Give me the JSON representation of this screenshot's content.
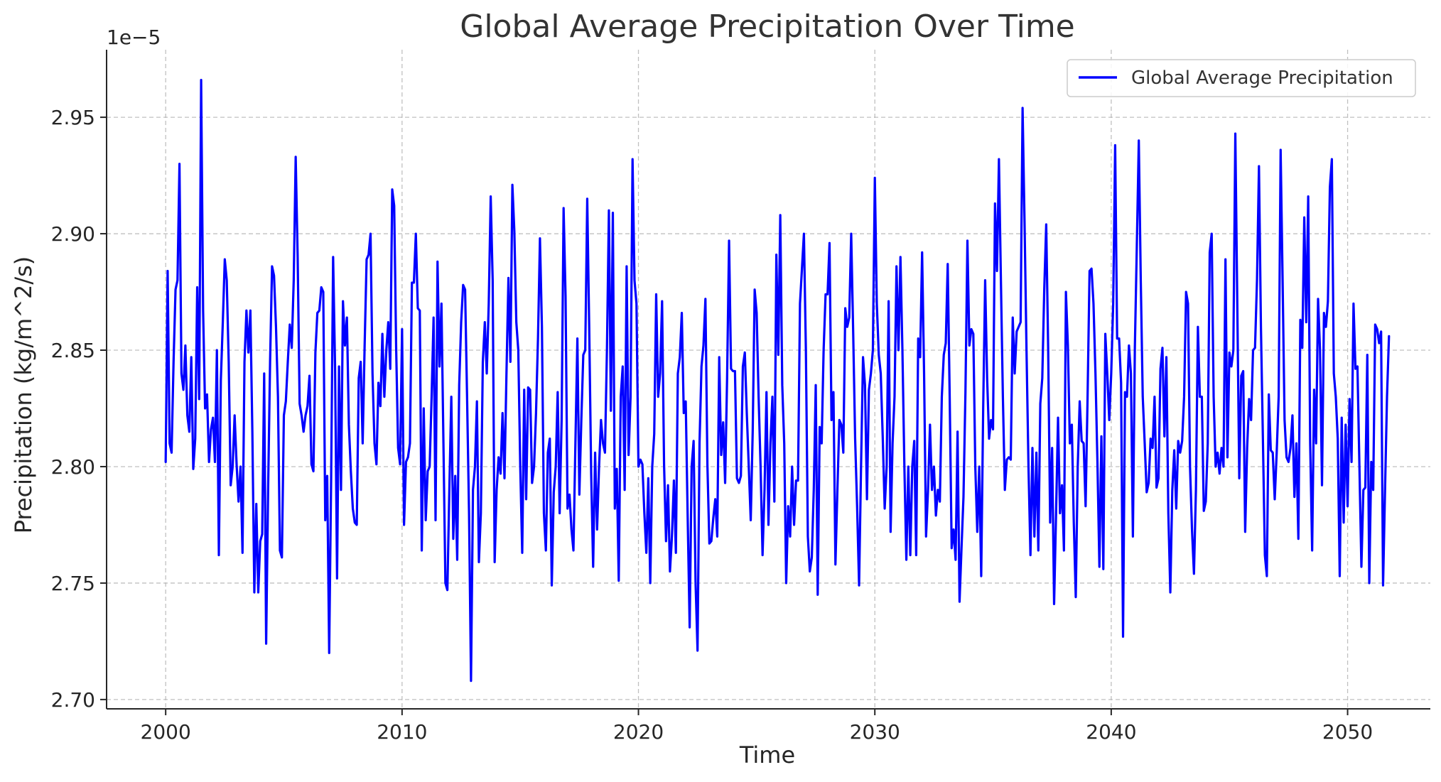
{
  "chart_data": {
    "type": "line",
    "title": "Global Average Precipitation Over Time",
    "xlabel": "Time",
    "ylabel": "Precipitation (kg/m^2/s)",
    "y_scale_note": "1e−5",
    "xlim": [
      1997.5,
      2053.5
    ],
    "ylim": [
      2.696,
      2.979
    ],
    "x_ticks": [
      2000,
      2010,
      2020,
      2030,
      2040,
      2050
    ],
    "y_ticks": [
      2.7,
      2.75,
      2.8,
      2.85,
      2.9,
      2.95
    ],
    "y_tick_labels": [
      "2.70",
      "2.75",
      "2.80",
      "2.85",
      "2.90",
      "2.95"
    ],
    "grid": true,
    "legend_position": "top-right",
    "line_color": "#0000ff",
    "series": [
      {
        "name": "Global Average Precipitation",
        "x_start": 2000.0,
        "x_step_months": 1,
        "values": [
          2.802,
          2.884,
          2.81,
          2.806,
          2.845,
          2.876,
          2.88,
          2.93,
          2.84,
          2.833,
          2.852,
          2.822,
          2.815,
          2.847,
          2.799,
          2.812,
          2.877,
          2.829,
          2.966,
          2.867,
          2.825,
          2.831,
          2.802,
          2.816,
          2.821,
          2.802,
          2.85,
          2.762,
          2.837,
          2.862,
          2.889,
          2.88,
          2.845,
          2.792,
          2.8,
          2.822,
          2.801,
          2.785,
          2.8,
          2.763,
          2.845,
          2.867,
          2.849,
          2.867,
          2.815,
          2.746,
          2.784,
          2.746,
          2.768,
          2.771,
          2.84,
          2.724,
          2.79,
          2.845,
          2.886,
          2.882,
          2.86,
          2.83,
          2.764,
          2.761,
          2.822,
          2.828,
          2.845,
          2.861,
          2.851,
          2.88,
          2.933,
          2.89,
          2.827,
          2.822,
          2.815,
          2.822,
          2.826,
          2.839,
          2.801,
          2.798,
          2.849,
          2.866,
          2.867,
          2.877,
          2.875,
          2.777,
          2.796,
          2.72,
          2.795,
          2.89,
          2.842,
          2.752,
          2.843,
          2.79,
          2.871,
          2.852,
          2.864,
          2.818,
          2.798,
          2.782,
          2.776,
          2.775,
          2.838,
          2.845,
          2.81,
          2.852,
          2.889,
          2.891,
          2.9,
          2.84,
          2.81,
          2.801,
          2.836,
          2.826,
          2.857,
          2.83,
          2.85,
          2.862,
          2.842,
          2.919,
          2.912,
          2.851,
          2.808,
          2.801,
          2.859,
          2.775,
          2.802,
          2.804,
          2.81,
          2.879,
          2.879,
          2.9,
          2.868,
          2.867,
          2.764,
          2.825,
          2.777,
          2.798,
          2.8,
          2.83,
          2.864,
          2.777,
          2.888,
          2.843,
          2.87,
          2.81,
          2.75,
          2.747,
          2.79,
          2.83,
          2.769,
          2.796,
          2.76,
          2.835,
          2.862,
          2.878,
          2.876,
          2.83,
          2.78,
          2.708,
          2.79,
          2.8,
          2.828,
          2.759,
          2.78,
          2.845,
          2.862,
          2.84,
          2.87,
          2.916,
          2.88,
          2.759,
          2.79,
          2.804,
          2.797,
          2.823,
          2.795,
          2.84,
          2.881,
          2.845,
          2.921,
          2.901,
          2.862,
          2.85,
          2.8,
          2.763,
          2.833,
          2.786,
          2.834,
          2.833,
          2.793,
          2.8,
          2.823,
          2.855,
          2.898,
          2.86,
          2.78,
          2.764,
          2.806,
          2.812,
          2.749,
          2.789,
          2.8,
          2.832,
          2.78,
          2.82,
          2.911,
          2.873,
          2.782,
          2.788,
          2.773,
          2.764,
          2.81,
          2.855,
          2.788,
          2.82,
          2.848,
          2.85,
          2.915,
          2.86,
          2.797,
          2.757,
          2.806,
          2.773,
          2.8,
          2.82,
          2.81,
          2.806,
          2.85,
          2.91,
          2.824,
          2.909,
          2.782,
          2.799,
          2.751,
          2.83,
          2.843,
          2.79,
          2.886,
          2.805,
          2.83,
          2.932,
          2.88,
          2.87,
          2.8,
          2.803,
          2.801,
          2.78,
          2.763,
          2.795,
          2.75,
          2.8,
          2.814,
          2.874,
          2.83,
          2.84,
          2.871,
          2.801,
          2.768,
          2.792,
          2.755,
          2.77,
          2.794,
          2.763,
          2.84,
          2.847,
          2.866,
          2.823,
          2.828,
          2.778,
          2.731,
          2.8,
          2.811,
          2.75,
          2.721,
          2.81,
          2.843,
          2.852,
          2.872,
          2.801,
          2.767,
          2.768,
          2.778,
          2.786,
          2.77,
          2.847,
          2.805,
          2.819,
          2.793,
          2.838,
          2.897,
          2.842,
          2.841,
          2.841,
          2.795,
          2.793,
          2.796,
          2.843,
          2.849,
          2.823,
          2.8,
          2.777,
          2.815,
          2.876,
          2.866,
          2.83,
          2.8,
          2.762,
          2.79,
          2.832,
          2.775,
          2.81,
          2.83,
          2.785,
          2.891,
          2.848,
          2.908,
          2.835,
          2.81,
          2.75,
          2.783,
          2.77,
          2.8,
          2.775,
          2.794,
          2.794,
          2.87,
          2.885,
          2.9,
          2.85,
          2.77,
          2.755,
          2.761,
          2.79,
          2.835,
          2.745,
          2.817,
          2.81,
          2.85,
          2.874,
          2.874,
          2.896,
          2.82,
          2.832,
          2.758,
          2.79,
          2.82,
          2.818,
          2.806,
          2.868,
          2.86,
          2.864,
          2.9,
          2.858,
          2.812,
          2.783,
          2.749,
          2.8,
          2.847,
          2.835,
          2.786,
          2.833,
          2.84,
          2.85,
          2.924,
          2.87,
          2.848,
          2.84,
          2.813,
          2.782,
          2.8,
          2.871,
          2.772,
          2.81,
          2.83,
          2.886,
          2.85,
          2.89,
          2.85,
          2.8,
          2.76,
          2.8,
          2.762,
          2.8,
          2.811,
          2.762,
          2.855,
          2.847,
          2.892,
          2.84,
          2.77,
          2.79,
          2.818,
          2.79,
          2.8,
          2.779,
          2.79,
          2.785,
          2.83,
          2.848,
          2.853,
          2.887,
          2.83,
          2.765,
          2.773,
          2.76,
          2.815,
          2.742,
          2.765,
          2.787,
          2.832,
          2.897,
          2.852,
          2.859,
          2.857,
          2.8,
          2.772,
          2.8,
          2.753,
          2.825,
          2.88,
          2.838,
          2.812,
          2.82,
          2.816,
          2.913,
          2.884,
          2.932,
          2.88,
          2.83,
          2.79,
          2.803,
          2.804,
          2.803,
          2.864,
          2.84,
          2.858,
          2.86,
          2.862,
          2.954,
          2.905,
          2.85,
          2.8,
          2.762,
          2.808,
          2.77,
          2.806,
          2.764,
          2.827,
          2.838,
          2.876,
          2.904,
          2.85,
          2.776,
          2.808,
          2.741,
          2.78,
          2.821,
          2.78,
          2.792,
          2.764,
          2.875,
          2.852,
          2.81,
          2.818,
          2.776,
          2.744,
          2.8,
          2.828,
          2.811,
          2.81,
          2.783,
          2.83,
          2.884,
          2.885,
          2.87,
          2.84,
          2.802,
          2.757,
          2.813,
          2.756,
          2.857,
          2.84,
          2.82,
          2.84,
          2.87,
          2.938,
          2.855,
          2.855,
          2.836,
          2.727,
          2.832,
          2.83,
          2.852,
          2.84,
          2.77,
          2.851,
          2.895,
          2.94,
          2.88,
          2.83,
          2.81,
          2.789,
          2.793,
          2.812,
          2.808,
          2.83,
          2.791,
          2.795,
          2.842,
          2.851,
          2.813,
          2.847,
          2.78,
          2.746,
          2.79,
          2.807,
          2.782,
          2.811,
          2.806,
          2.811,
          2.83,
          2.875,
          2.87,
          2.8,
          2.773,
          2.754,
          2.79,
          2.86,
          2.83,
          2.83,
          2.781,
          2.785,
          2.81,
          2.892,
          2.9,
          2.83,
          2.8,
          2.806,
          2.797,
          2.808,
          2.8,
          2.889,
          2.804,
          2.849,
          2.843,
          2.85,
          2.943,
          2.87,
          2.795,
          2.839,
          2.841,
          2.772,
          2.808,
          2.829,
          2.82,
          2.85,
          2.851,
          2.88,
          2.929,
          2.86,
          2.812,
          2.762,
          2.753,
          2.831,
          2.807,
          2.806,
          2.786,
          2.806,
          2.83,
          2.936,
          2.88,
          2.82,
          2.804,
          2.802,
          2.808,
          2.822,
          2.787,
          2.81,
          2.769,
          2.863,
          2.851,
          2.907,
          2.862,
          2.916,
          2.81,
          2.764,
          2.833,
          2.81,
          2.872,
          2.85,
          2.792,
          2.866,
          2.86,
          2.871,
          2.92,
          2.932,
          2.84,
          2.83,
          2.812,
          2.753,
          2.821,
          2.776,
          2.818,
          2.783,
          2.829,
          2.802,
          2.87,
          2.842,
          2.843,
          2.8,
          2.757,
          2.79,
          2.791,
          2.848,
          2.75,
          2.802,
          2.79,
          2.861,
          2.859,
          2.853,
          2.858,
          2.749,
          2.79,
          2.83,
          2.856
        ]
      }
    ]
  }
}
